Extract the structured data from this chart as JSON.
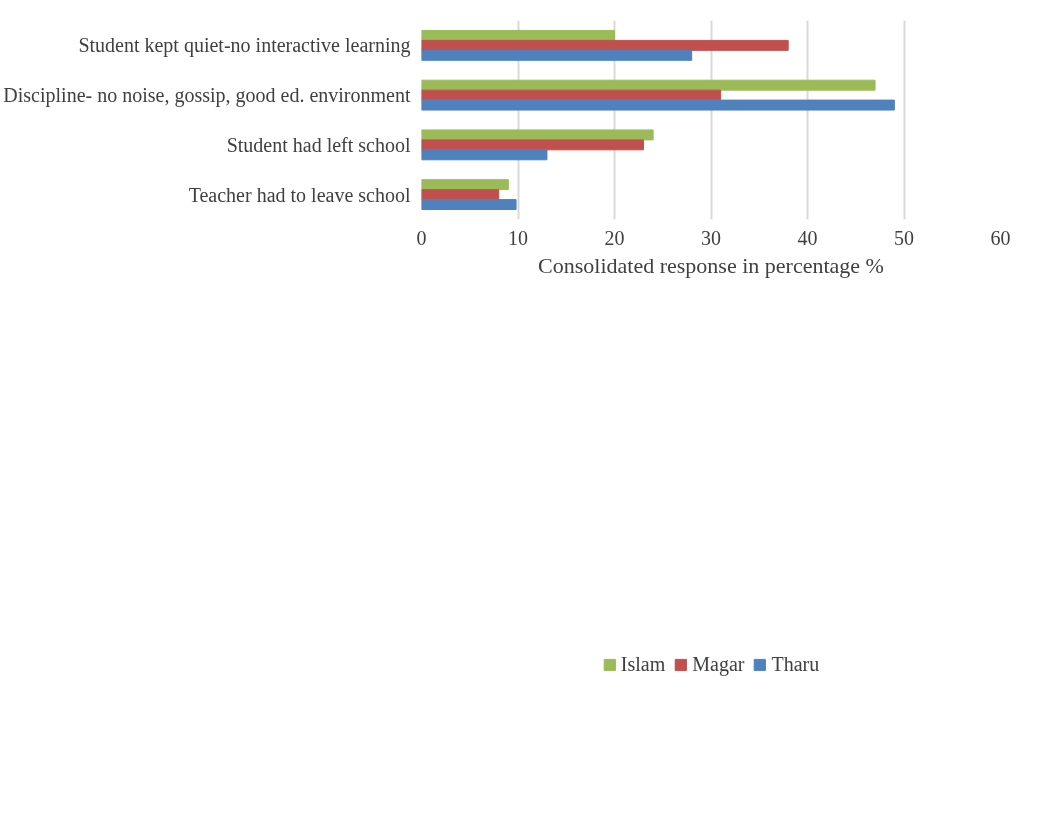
{
  "chart_data": {
    "type": "bar",
    "orientation": "horizontal",
    "categories": [
      "Student kept quiet-no interactive learning",
      "Discipline- no noise, gossip, good ed. environment",
      "Student had left school",
      "Teacher had to leave school"
    ],
    "series": [
      {
        "name": "Islam",
        "color": "#9bbb59",
        "values": [
          20,
          47,
          24,
          9
        ]
      },
      {
        "name": "Magar",
        "color": "#c0504d",
        "values": [
          38,
          31,
          23,
          8
        ]
      },
      {
        "name": "Tharu",
        "color": "#4f81bd",
        "values": [
          28,
          49,
          13,
          9.8
        ]
      }
    ],
    "xlabel": "Consolidated response in percentage %",
    "xlim": [
      0,
      60
    ],
    "xticks": [
      0,
      10,
      20,
      30,
      40,
      50,
      60
    ],
    "grid": "x",
    "legend": "bottom"
  }
}
